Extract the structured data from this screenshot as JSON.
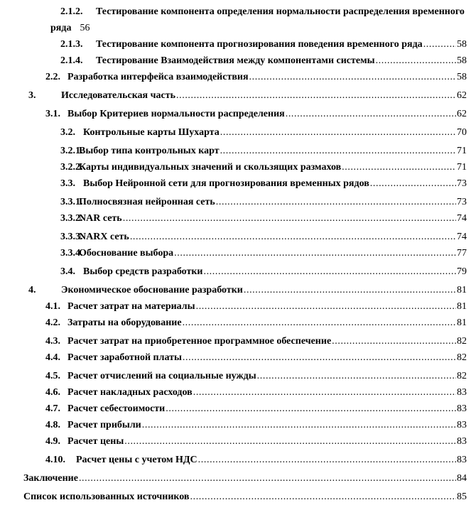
{
  "page": {
    "background": "#ffffff",
    "text_color": "#000000"
  },
  "toc": {
    "entries": [
      {
        "number": "2.1.2.",
        "label": "Тестирование компонента определения нормальности распределения временного",
        "page": "",
        "variant": "l3t",
        "dots": false,
        "extra_space": false,
        "wrap": {
          "label": "ряда",
          "page": "56"
        }
      },
      {
        "number": "2.1.3.",
        "label": "Тестирование компонента прогнозирования поведения временного ряда",
        "page": "58",
        "variant": "l3t",
        "dots": true,
        "extra_space": false
      },
      {
        "number": "2.1.4.",
        "label": "Тестирование Взаимодействия между компонентами системы",
        "page": "58",
        "variant": "l3t",
        "dots": true,
        "extra_space": false
      },
      {
        "number": "2.2.",
        "label": "Разработка интерфейса взаимодействия",
        "page": "58",
        "variant": "l2",
        "dots": true,
        "extra_space": false
      },
      {
        "number": "3.",
        "label": "Исследовательская часть",
        "page": "62",
        "variant": "l1",
        "dots": true,
        "extra_space": true
      },
      {
        "number": "3.1.",
        "label": "Выбор Критериев нормальности распределения",
        "page": "62",
        "variant": "l2",
        "dots": true,
        "extra_space": true
      },
      {
        "number": "3.2.",
        "label": "Контрольные карты Шухарта",
        "page": "70",
        "variant": "l3h",
        "dots": true,
        "extra_space": true
      },
      {
        "number": "3.2.1.",
        "label": "Выбор типа контрольных карт",
        "page": "71",
        "variant": "l3s",
        "dots": true,
        "extra_space": true
      },
      {
        "number": "3.2.2.",
        "label": "Карты индивидуальных значений и скользящих размахов",
        "page": "71",
        "variant": "l3s",
        "dots": true,
        "extra_space": false
      },
      {
        "number": "3.3.",
        "label": "Выбор Нейронной сети для прогнозирования временных рядов",
        "page": "73",
        "variant": "l3h",
        "dots": true,
        "extra_space": false
      },
      {
        "number": "3.3.1.",
        "label": "Полносвязная нейронная сеть",
        "page": "73",
        "variant": "l3s",
        "dots": true,
        "extra_space": true
      },
      {
        "number": "3.3.2.",
        "label": "NAR сеть",
        "page": "74",
        "variant": "l3s",
        "dots": true,
        "extra_space": false
      },
      {
        "number": "3.3.3.",
        "label": "NARX сеть",
        "page": "74",
        "variant": "l3s",
        "dots": true,
        "extra_space": true
      },
      {
        "number": "3.3.4.",
        "label": "Обоснование выбора",
        "page": "77",
        "variant": "l3s",
        "dots": true,
        "extra_space": false
      },
      {
        "number": "3.4.",
        "label": "Выбор средств разработки",
        "page": "79",
        "variant": "l3h",
        "dots": true,
        "extra_space": true
      },
      {
        "number": "4.",
        "label": "Экономическое обоснование разработки",
        "page": "81",
        "variant": "l1",
        "dots": true,
        "extra_space": true
      },
      {
        "number": "4.1.",
        "label": "Расчет затрат на материалы",
        "page": "81",
        "variant": "l2",
        "dots": true,
        "extra_space": false
      },
      {
        "number": "4.2.",
        "label": "Затраты на оборудование",
        "page": "81",
        "variant": "l2",
        "dots": true,
        "extra_space": false
      },
      {
        "number": "4.3.",
        "label": "Расчет затрат на приобретенное программное обеспечение",
        "page": "82",
        "variant": "l2",
        "dots": true,
        "extra_space": true
      },
      {
        "number": "4.4.",
        "label": "Расчет заработной платы",
        "page": "82",
        "variant": "l2",
        "dots": true,
        "extra_space": false
      },
      {
        "number": "4.5.",
        "label": "Расчет отчислений на социальные нужды",
        "page": "82",
        "variant": "l2",
        "dots": true,
        "extra_space": true
      },
      {
        "number": "4.6.",
        "label": "Расчет накладных расходов",
        "page": "83",
        "variant": "l2",
        "dots": true,
        "extra_space": false
      },
      {
        "number": "4.7.",
        "label": "Расчет себестоимости",
        "page": "83",
        "variant": "l2",
        "dots": true,
        "extra_space": false
      },
      {
        "number": "4.8.",
        "label": "Расчет прибыли",
        "page": "83",
        "variant": "l2",
        "dots": true,
        "extra_space": false
      },
      {
        "number": "4.9.",
        "label": "Расчет цены",
        "page": "83",
        "variant": "l2",
        "dots": true,
        "extra_space": false
      },
      {
        "number": "4.10.",
        "label": "Расчет цены с учетом НДС",
        "page": "83",
        "variant": "l2w",
        "dots": true,
        "extra_space": true
      },
      {
        "number": "",
        "label": "Заключение",
        "page": "84",
        "variant": "l0",
        "dots": true,
        "extra_space": true
      },
      {
        "number": "",
        "label": "Список использованных источников",
        "page": "85",
        "variant": "l0",
        "dots": true,
        "extra_space": true
      }
    ]
  }
}
